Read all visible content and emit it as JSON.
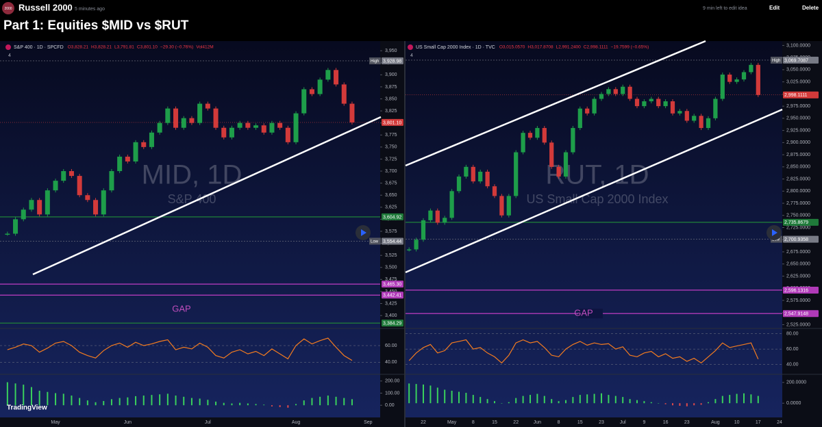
{
  "header": {
    "logo": "2000",
    "title": "Russell 2000",
    "time": "5 minutes ago",
    "edit_note": "9 min left to edit idea",
    "edit": "Edit",
    "delete": "Delete"
  },
  "page_title": "Part 1: Equities $MID vs $RUT",
  "branding": "TradingView",
  "chart_data": [
    {
      "type": "candlestick",
      "symbol": "S&P 400 · 1D · SPCFD",
      "ohlc": [
        "O3,828.21",
        "H3,828.21",
        "L3,791.81",
        "C3,801.10",
        "−29.30 (−0.76%)",
        "Vol412M"
      ],
      "legend_count": 4,
      "watermark": "MID, 1D",
      "watermark_sub": "S&P 400",
      "gap_label": "GAP",
      "up_color": "#1e9e4a",
      "down_color": "#d23a3a",
      "categories": [
        null,
        null,
        null,
        null,
        null,
        null,
        "May",
        null,
        null,
        null,
        null,
        null,
        null,
        null,
        null,
        "Jun",
        null,
        null,
        null,
        null,
        null,
        null,
        null,
        null,
        null,
        "Jul",
        null,
        null,
        null,
        null,
        null,
        null,
        null,
        null,
        null,
        null,
        "Aug",
        null,
        null,
        null,
        null,
        null,
        null,
        null,
        null,
        "Sep"
      ],
      "values": [
        3570,
        3600,
        3620,
        3640,
        3610,
        3660,
        3680,
        3700,
        3690,
        3650,
        3640,
        3610,
        3660,
        3700,
        3730,
        3720,
        3760,
        3750,
        3780,
        3800,
        3830,
        3790,
        3810,
        3800,
        3840,
        3830,
        3790,
        3770,
        3790,
        3800,
        3790,
        3795,
        3780,
        3800,
        3790,
        3760,
        3820,
        3870,
        3860,
        3890,
        3910,
        3880,
        3840,
        3801.1,
        null,
        null
      ],
      "ylim": [
        3376,
        3963
      ],
      "yticks": [
        {
          "value": 3400,
          "label": "3,400"
        },
        {
          "value": 3425,
          "label": "3,425"
        },
        {
          "value": 3450,
          "label": "3,450"
        },
        {
          "value": 3475,
          "label": "3,475"
        },
        {
          "value": 3500,
          "label": "3,500"
        },
        {
          "value": 3525,
          "label": "3,525"
        },
        {
          "value": 3550,
          "label": "3,550"
        },
        {
          "value": 3575,
          "label": "3,575"
        },
        {
          "value": 3600,
          "label": "3,600"
        },
        {
          "value": 3625,
          "label": "3,625"
        },
        {
          "value": 3650,
          "label": "3,650"
        },
        {
          "value": 3675,
          "label": "3,675"
        },
        {
          "value": 3700,
          "label": "3,700"
        },
        {
          "value": 3725,
          "label": "3,725"
        },
        {
          "value": 3750,
          "label": "3,750"
        },
        {
          "value": 3775,
          "label": "3,775"
        },
        {
          "value": 3800,
          "label": "3,800"
        },
        {
          "value": 3825,
          "label": "3,825"
        },
        {
          "value": 3850,
          "label": "3,850"
        },
        {
          "value": 3875,
          "label": "3,875"
        },
        {
          "value": 3900,
          "label": "3,900"
        },
        {
          "value": 3925,
          "label": "3,925"
        },
        {
          "value": 3950,
          "label": "3,950"
        }
      ],
      "price_labels": [
        {
          "tag": "High",
          "value": 3928.98,
          "label": "3,928.98",
          "color": "#787b86"
        },
        {
          "value": 3801.1,
          "label": "3,801.10",
          "color": "#d23a3a"
        },
        {
          "value": 3604.92,
          "label": "3,604.92",
          "color": "#1f7a3a"
        },
        {
          "tag": "Low",
          "value": 3554.44,
          "label": "3,554.44",
          "color": "#787b86"
        },
        {
          "value": 3465.3,
          "label": "3,465.30",
          "color": "#b03ab8"
        },
        {
          "value": 3442.41,
          "label": "3,442.41",
          "color": "#b03ab8"
        },
        {
          "value": 3384.29,
          "label": "3,384.29",
          "color": "#1f7a3a"
        }
      ],
      "rsi": {
        "color": "#f57c1f",
        "ylim": [
          27,
          79
        ],
        "yticks": [
          {
            "value": 60,
            "label": "60.00"
          },
          {
            "value": 40,
            "label": "40.00"
          }
        ],
        "values": [
          55,
          58,
          62,
          60,
          52,
          57,
          63,
          65,
          60,
          52,
          48,
          45,
          54,
          60,
          63,
          58,
          64,
          60,
          62,
          65,
          67,
          55,
          58,
          56,
          63,
          58,
          48,
          45,
          52,
          55,
          50,
          53,
          48,
          56,
          50,
          44,
          60,
          68,
          62,
          66,
          69,
          58,
          48,
          42,
          null,
          null
        ]
      },
      "macd": {
        "up_color": "#3ad15c",
        "down_color": "#e04a4a",
        "ylim": [
          -44,
          244
        ],
        "yticks": [
          {
            "value": 200,
            "label": "200.00"
          },
          {
            "value": 100,
            "label": "100.00"
          },
          {
            "value": 0,
            "label": "0.00"
          }
        ],
        "values": [
          190,
          180,
          170,
          150,
          120,
          110,
          100,
          95,
          80,
          60,
          40,
          25,
          35,
          50,
          60,
          65,
          75,
          80,
          85,
          90,
          95,
          80,
          70,
          60,
          55,
          45,
          30,
          20,
          15,
          20,
          15,
          10,
          5,
          -10,
          -15,
          -20,
          10,
          40,
          60,
          70,
          80,
          70,
          60,
          50,
          null,
          null
        ]
      }
    },
    {
      "type": "candlestick",
      "symbol": "US Small Cap 2000 Index · 1D · TVC",
      "ohlc": [
        "O3,015.0570",
        "H3,017.8708",
        "L2,991.2400",
        "C2,998.1111",
        "−19.7599 (−0.65%)"
      ],
      "legend_count": 4,
      "watermark": "RUT, 1D",
      "watermark_sub": "US Small Cap 2000 Index",
      "gap_label": "GAP",
      "up_color": "#1e9e4a",
      "down_color": "#d23a3a",
      "categories": [
        null,
        null,
        "22",
        null,
        null,
        null,
        "May",
        null,
        null,
        "8",
        null,
        null,
        "15",
        null,
        null,
        "22",
        null,
        null,
        "Jun",
        null,
        null,
        "8",
        null,
        null,
        "15",
        null,
        null,
        "23",
        null,
        null,
        "Jul",
        null,
        null,
        "9",
        null,
        null,
        "16",
        null,
        null,
        "23",
        null,
        null,
        null,
        "Aug",
        null,
        null,
        "10",
        null,
        null,
        "17",
        null,
        null,
        "24"
      ],
      "values": [
        2680,
        2700,
        2740,
        2760,
        2735,
        2745,
        2800,
        2830,
        2850,
        2820,
        2840,
        2810,
        2790,
        2750,
        2790,
        2880,
        2920,
        2910,
        2930,
        2900,
        2850,
        2830,
        2880,
        2930,
        2970,
        2960,
        2990,
        3000,
        3010,
        3000,
        3015,
        2990,
        2975,
        2985,
        2990,
        2975,
        2985,
        2960,
        2965,
        2945,
        2955,
        2930,
        2950,
        2990,
        3040,
        3025,
        3030,
        3045,
        3060,
        2998.1111,
        null,
        null,
        null
      ],
      "ylim": [
        2520,
        3102
      ],
      "yticks": [
        {
          "value": 2525,
          "label": "2,525.0000"
        },
        {
          "value": 2550,
          "label": "2,550.0000"
        },
        {
          "value": 2575,
          "label": "2,575.0000"
        },
        {
          "value": 2600,
          "label": "2,600.0000"
        },
        {
          "value": 2625,
          "label": "2,625.0000"
        },
        {
          "value": 2650,
          "label": "2,650.0000"
        },
        {
          "value": 2675,
          "label": "2,675.0000"
        },
        {
          "value": 2700,
          "label": "2,700.0000"
        },
        {
          "value": 2725,
          "label": "2,725.0000"
        },
        {
          "value": 2750,
          "label": "2,750.0000"
        },
        {
          "value": 2775,
          "label": "2,775.0000"
        },
        {
          "value": 2800,
          "label": "2,800.0000"
        },
        {
          "value": 2825,
          "label": "2,825.0000"
        },
        {
          "value": 2850,
          "label": "2,850.0000"
        },
        {
          "value": 2875,
          "label": "2,875.0000"
        },
        {
          "value": 2900,
          "label": "2,900.0000"
        },
        {
          "value": 2925,
          "label": "2,925.0000"
        },
        {
          "value": 2950,
          "label": "2,950.0000"
        },
        {
          "value": 2975,
          "label": "2,975.0000"
        },
        {
          "value": 3000,
          "label": "3,000.0000"
        },
        {
          "value": 3025,
          "label": "3,025.0000"
        },
        {
          "value": 3050,
          "label": "3,050.0000"
        },
        {
          "value": 3075,
          "label": "3,075.0000"
        },
        {
          "value": 3100,
          "label": "3,100.0000"
        }
      ],
      "price_labels": [
        {
          "tag": "High",
          "value": 3069.7087,
          "label": "3,069.7087",
          "color": "#787b86"
        },
        {
          "value": 2998.1111,
          "label": "2,998.1111",
          "color": "#d23a3a"
        },
        {
          "value": 2735.8679,
          "label": "2,735.8679",
          "color": "#1f7a3a"
        },
        {
          "tag": "Low",
          "value": 2700.9358,
          "label": "2,700.9358",
          "color": "#787b86"
        },
        {
          "value": 2596.1316,
          "label": "2,596.1316",
          "color": "#b03ab8"
        },
        {
          "value": 2547.9148,
          "label": "2,547.9148",
          "color": "#b03ab8"
        }
      ],
      "rsi": {
        "color": "#f57c1f",
        "ylim": [
          29,
          85
        ],
        "yticks": [
          {
            "value": 80,
            "label": "80.00"
          },
          {
            "value": 60,
            "label": "60.00"
          },
          {
            "value": 40,
            "label": "40.00"
          }
        ],
        "values": [
          45,
          55,
          62,
          66,
          55,
          58,
          68,
          70,
          72,
          60,
          62,
          55,
          50,
          42,
          52,
          68,
          72,
          68,
          70,
          62,
          52,
          50,
          60,
          66,
          70,
          65,
          68,
          66,
          67,
          60,
          63,
          52,
          50,
          55,
          57,
          50,
          54,
          48,
          50,
          44,
          48,
          42,
          50,
          58,
          68,
          62,
          64,
          66,
          68,
          47,
          null,
          null,
          null
        ]
      },
      "macd": {
        "up_color": "#3ad15c",
        "down_color": "#e04a4a",
        "ylim": [
          -71,
          265
        ],
        "yticks": [
          {
            "value": 200,
            "label": "200.0000"
          },
          {
            "value": 0,
            "label": "0.0000"
          }
        ],
        "values": [
          190,
          185,
          180,
          170,
          150,
          130,
          120,
          110,
          100,
          80,
          60,
          40,
          20,
          0,
          10,
          50,
          70,
          80,
          90,
          70,
          40,
          20,
          30,
          60,
          80,
          85,
          90,
          95,
          80,
          70,
          60,
          40,
          30,
          20,
          10,
          0,
          -10,
          -20,
          -25,
          -30,
          -20,
          -15,
          10,
          40,
          70,
          80,
          90,
          95,
          85,
          70,
          null,
          null,
          null
        ]
      }
    }
  ]
}
